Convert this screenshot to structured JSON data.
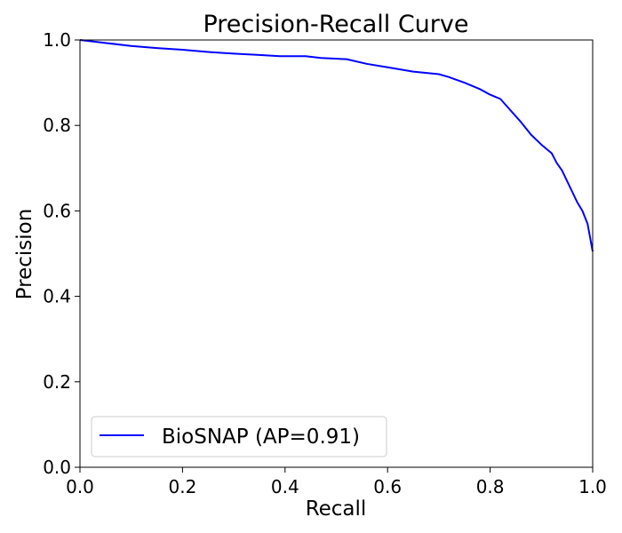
{
  "chart_data": {
    "type": "line",
    "title": "Precision-Recall Curve",
    "xlabel": "Recall",
    "ylabel": "Precision",
    "xlim": [
      0,
      1
    ],
    "ylim": [
      0,
      1
    ],
    "x_ticks": [
      "0.0",
      "0.2",
      "0.4",
      "0.6",
      "0.8",
      "1.0"
    ],
    "y_ticks": [
      "0.0",
      "0.2",
      "0.4",
      "0.6",
      "0.8",
      "1.0"
    ],
    "grid": false,
    "legend_position": "lower-left",
    "series": [
      {
        "name": "BioSNAP (AP=0.91)",
        "color": "#0000ff",
        "x": [
          0.0,
          0.05,
          0.1,
          0.15,
          0.2,
          0.25,
          0.3,
          0.35,
          0.39,
          0.44,
          0.47,
          0.52,
          0.56,
          0.6,
          0.65,
          0.7,
          0.72,
          0.75,
          0.78,
          0.8,
          0.82,
          0.84,
          0.86,
          0.88,
          0.9,
          0.92,
          0.93,
          0.94,
          0.95,
          0.96,
          0.97,
          0.98,
          0.99,
          1.0
        ],
        "y": [
          1.0,
          0.993,
          0.986,
          0.981,
          0.977,
          0.972,
          0.968,
          0.965,
          0.962,
          0.962,
          0.958,
          0.955,
          0.944,
          0.936,
          0.926,
          0.92,
          0.913,
          0.9,
          0.885,
          0.872,
          0.862,
          0.835,
          0.808,
          0.778,
          0.755,
          0.735,
          0.712,
          0.695,
          0.67,
          0.645,
          0.62,
          0.6,
          0.57,
          0.505
        ]
      }
    ]
  }
}
